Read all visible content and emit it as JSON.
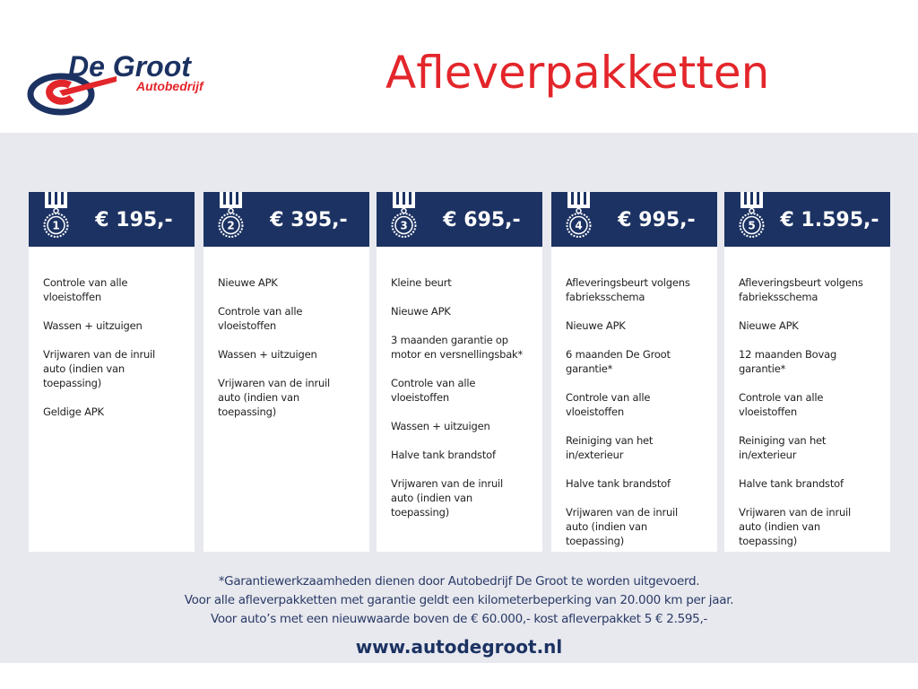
{
  "logo": {
    "name": "De Groot",
    "sub": "Autobedrijf"
  },
  "title": "Afleverpakketten",
  "packages": [
    {
      "number": "1",
      "price": "€ 195,-",
      "items": [
        "Controle van alle vloeistoffen",
        "Wassen + uitzuigen",
        "Vrijwaren van de inruil auto (indien van toepassing)",
        "Geldige APK"
      ]
    },
    {
      "number": "2",
      "price": "€ 395,-",
      "items": [
        "Nieuwe APK",
        "Controle van alle vloeistoffen",
        "Wassen + uitzuigen",
        "Vrijwaren van de inruil auto (indien van toepassing)"
      ]
    },
    {
      "number": "3",
      "price": "€ 695,-",
      "items": [
        "Kleine beurt",
        "Nieuwe APK",
        "3 maanden garantie op motor en versnellingsbak*",
        "Controle van alle vloeistoffen",
        "Wassen + uitzuigen",
        "Halve tank brandstof",
        "Vrijwaren van de inruil auto (indien van toepassing)"
      ]
    },
    {
      "number": "4",
      "price": "€ 995,-",
      "items": [
        "Afleveringsbeurt volgens fabrieksschema",
        "Nieuwe APK",
        "6 maanden De Groot garantie*",
        "Controle van alle vloeistoffen",
        "Reiniging van het in/exterieur",
        "Halve tank brandstof",
        "Vrijwaren van de inruil auto (indien van toepassing)"
      ]
    },
    {
      "number": "5",
      "price": "€ 1.595,-",
      "items": [
        "Afleveringsbeurt volgens fabrieksschema",
        "Nieuwe APK",
        "12 maanden Bovag garantie*",
        "Controle van alle vloeistoffen",
        "Reiniging van het in/exterieur",
        "Halve tank brandstof",
        "Vrijwaren van de inruil auto (indien van toepassing)"
      ]
    }
  ],
  "footer": {
    "lines": [
      "*Garantiewerkzaamheden dienen door Autobedrijf De Groot te worden uitgevoerd.",
      "Voor alle afleverpakketten met garantie geldt een kilometerbeperking van 20.000 km per jaar.",
      "Voor auto’s met een nieuwwaarde boven de € 60.000,- kost afleverpakket 5 € 2.595,-"
    ],
    "url": "www.autodegroot.nl"
  },
  "colors": {
    "navy": "#1c3262",
    "red": "#e3262b",
    "band": "#e8e9ef"
  }
}
